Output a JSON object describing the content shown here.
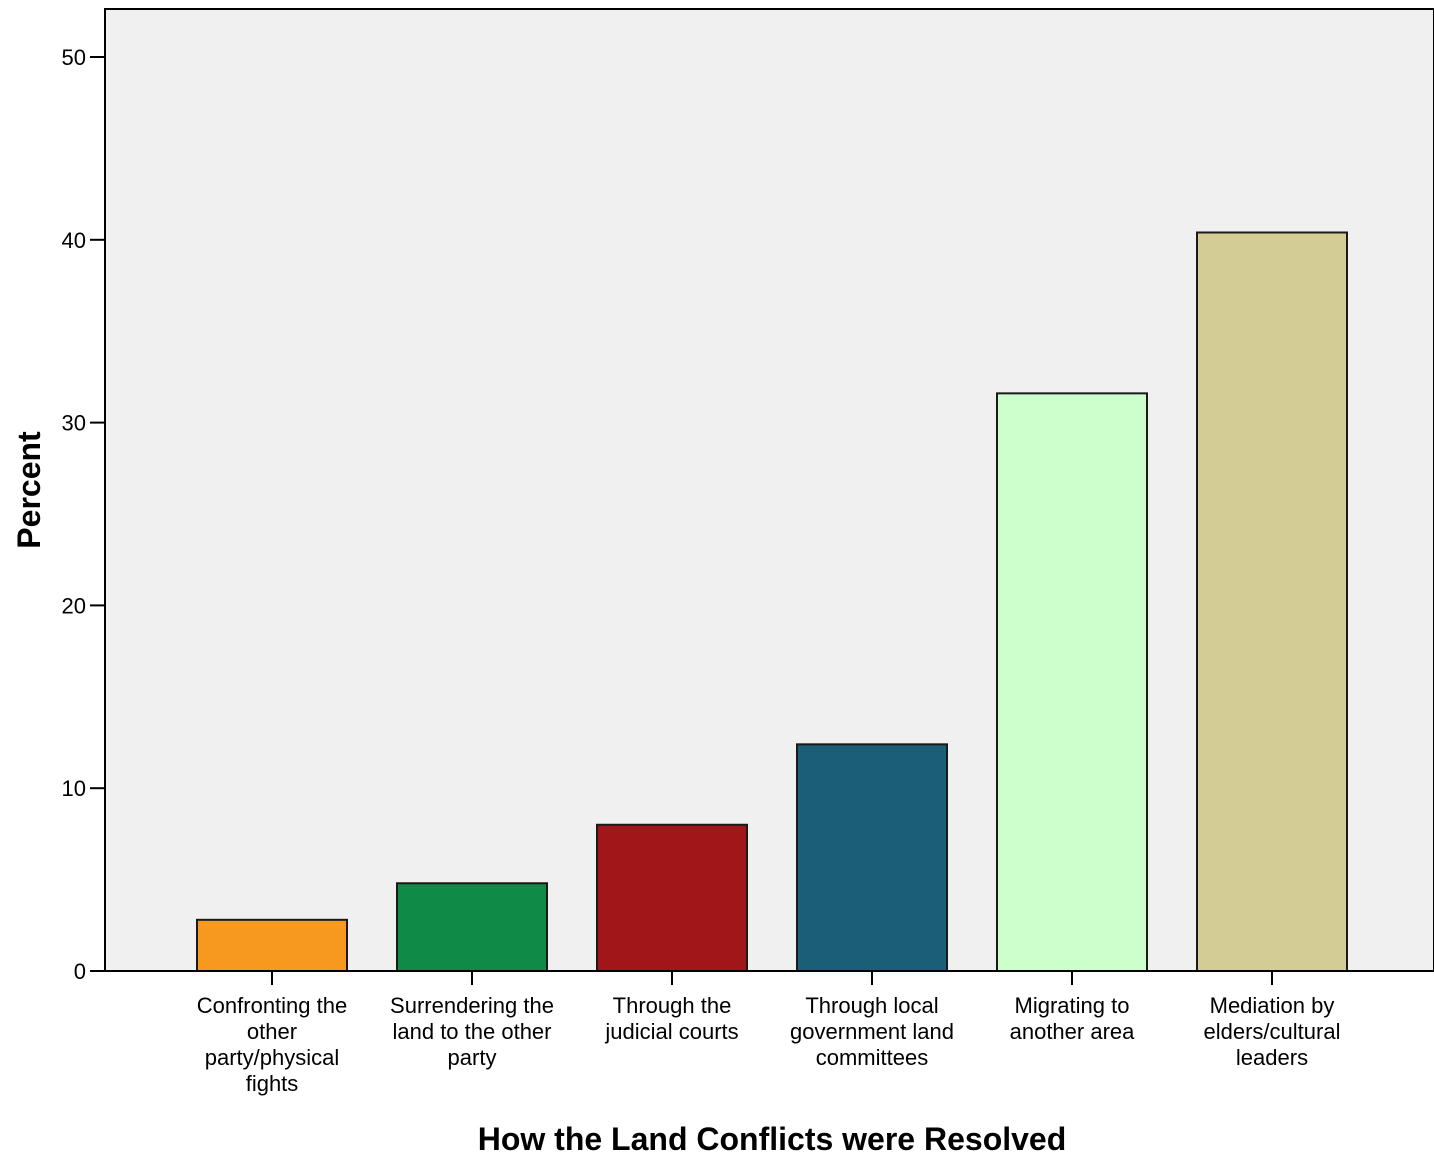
{
  "chart_data": {
    "type": "bar",
    "categories": [
      [
        "Confronting the",
        "other",
        "party/physical",
        "fights"
      ],
      [
        "Surrendering the",
        "land to the other",
        "party"
      ],
      [
        "Through the",
        "judicial courts"
      ],
      [
        "Through local",
        "government land",
        "committees"
      ],
      [
        "Migrating to",
        "another area"
      ],
      [
        "Mediation by",
        "elders/cultural",
        "leaders"
      ]
    ],
    "values": [
      2.8,
      4.8,
      8.0,
      12.4,
      31.6,
      40.4
    ],
    "colors": [
      "#f7991f",
      "#0f8a47",
      "#a01619",
      "#1b5e77",
      "#ccffcc",
      "#d3cc95"
    ],
    "xlabel": "How the Land Conflicts were Resolved",
    "ylabel": "Percent",
    "ylim": [
      0,
      52
    ],
    "yticks": [
      0,
      10,
      20,
      30,
      40,
      50
    ],
    "plot_background": "#f0f0f0",
    "grid": false
  }
}
